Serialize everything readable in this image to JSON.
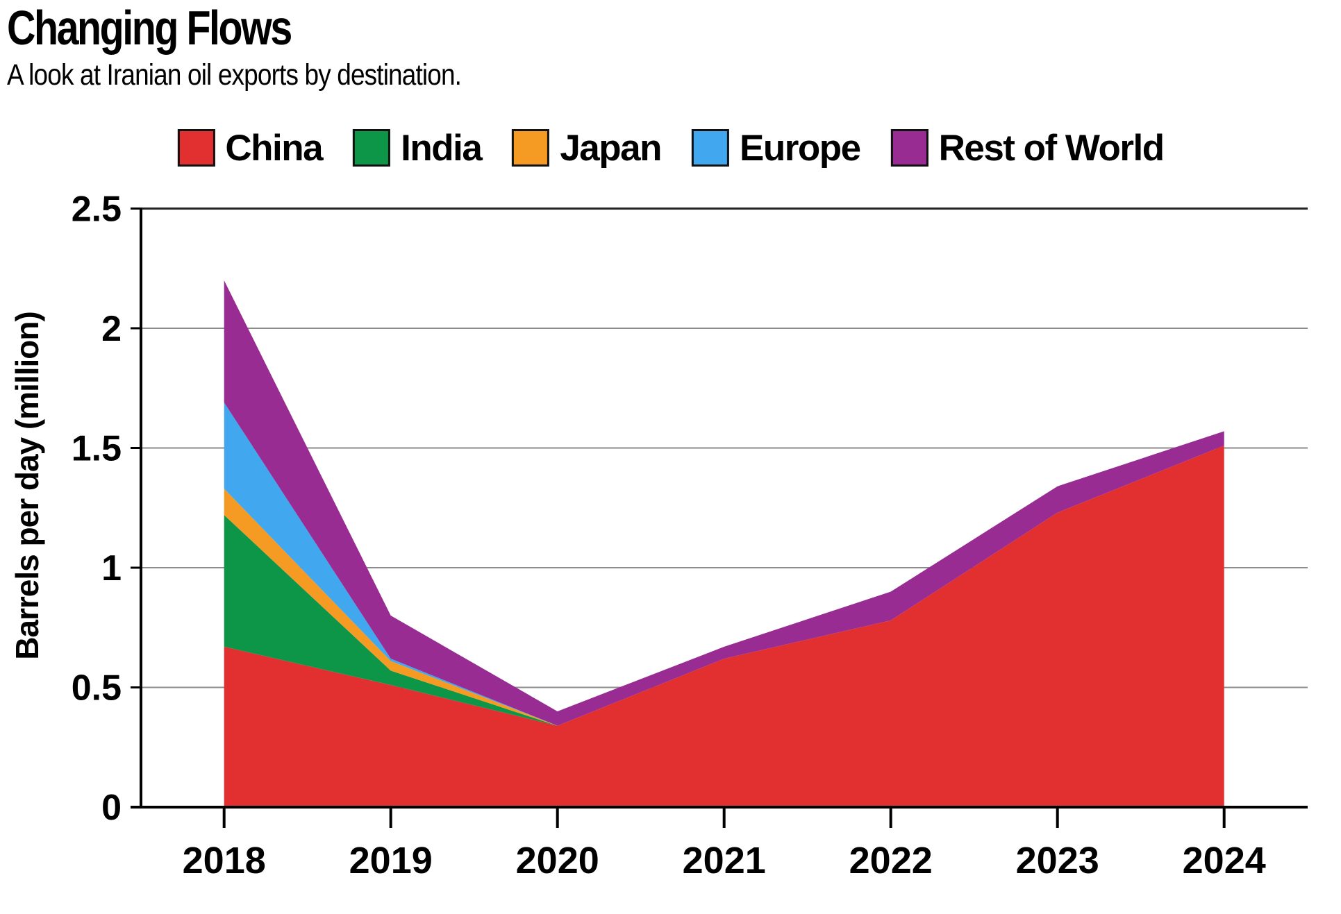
{
  "header": {
    "title": "Changing Flows",
    "subtitle": "A look at Iranian oil exports by destination."
  },
  "legend": {
    "items": [
      {
        "label": "China",
        "color": "#E23030"
      },
      {
        "label": "India",
        "color": "#0D9648"
      },
      {
        "label": "Japan",
        "color": "#F59B23"
      },
      {
        "label": "Europe",
        "color": "#41A7EE"
      },
      {
        "label": "Rest of World",
        "color": "#982C92"
      }
    ]
  },
  "chart_data": {
    "type": "area",
    "stacked": true,
    "title": "Changing Flows",
    "subtitle": "A look at Iranian oil exports by destination.",
    "x": [
      2018,
      2019,
      2020,
      2021,
      2022,
      2023,
      2024
    ],
    "x_labels": [
      "2018",
      "2019",
      "2020",
      "2021",
      "2022",
      "2023",
      "2024"
    ],
    "series": [
      {
        "name": "China",
        "color": "#E23030",
        "values": [
          0.67,
          0.51,
          0.34,
          0.62,
          0.78,
          1.23,
          1.51
        ]
      },
      {
        "name": "India",
        "color": "#0D9648",
        "values": [
          0.55,
          0.06,
          0.0,
          0.0,
          0.0,
          0.0,
          0.0
        ]
      },
      {
        "name": "Japan",
        "color": "#F59B23",
        "values": [
          0.11,
          0.04,
          0.0,
          0.0,
          0.0,
          0.0,
          0.0
        ]
      },
      {
        "name": "Europe",
        "color": "#41A7EE",
        "values": [
          0.36,
          0.01,
          0.0,
          0.0,
          0.0,
          0.0,
          0.0
        ]
      },
      {
        "name": "Rest of World",
        "color": "#982C92",
        "values": [
          0.51,
          0.18,
          0.06,
          0.05,
          0.12,
          0.11,
          0.06
        ]
      }
    ],
    "totals_by_year": [
      2.2,
      0.8,
      0.4,
      0.67,
      0.9,
      1.34,
      1.57
    ],
    "xlabel": "",
    "ylabel": "Barrels per day (million)",
    "ylim": [
      0,
      2.5
    ],
    "yticks": [
      0,
      0.5,
      1,
      1.5,
      2,
      2.5
    ],
    "ytick_labels": [
      "0",
      "0.5",
      "1",
      "1.5",
      "2",
      "2.5"
    ],
    "grid": true,
    "gridline_color": "#8C8C8C",
    "axis_color": "#000000",
    "legend_position": "top"
  }
}
